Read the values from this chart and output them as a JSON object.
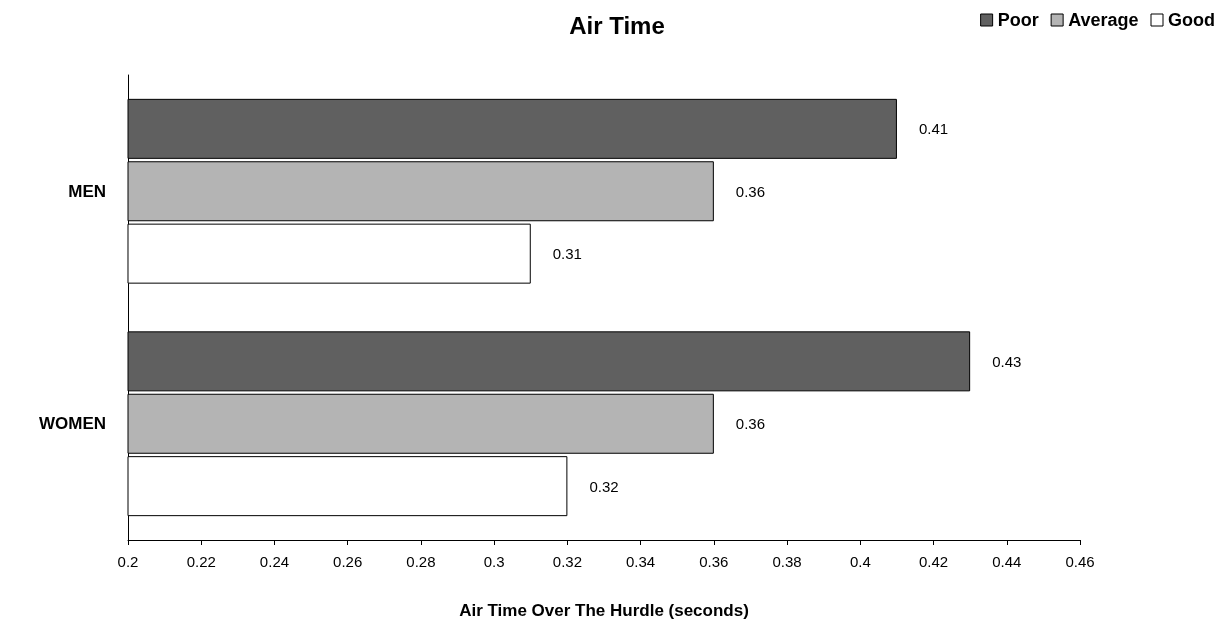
{
  "chart_data": {
    "type": "bar",
    "orientation": "horizontal",
    "title": "Air Time",
    "xlabel": "Air Time Over The Hurdle (seconds)",
    "categories": [
      "MEN",
      "WOMEN"
    ],
    "series": [
      {
        "name": "Poor",
        "color": "#606060",
        "values": [
          0.41,
          0.43
        ]
      },
      {
        "name": "Average",
        "color": "#b4b4b4",
        "values": [
          0.36,
          0.36
        ]
      },
      {
        "name": "Good",
        "color": "#ffffff",
        "values": [
          0.31,
          0.32
        ]
      }
    ],
    "xlim": [
      0.2,
      0.46
    ],
    "xticks": [
      0.2,
      0.22,
      0.24,
      0.26,
      0.28,
      0.3,
      0.32,
      0.34,
      0.36,
      0.38,
      0.4,
      0.42,
      0.44,
      0.46
    ],
    "data_labels": true,
    "grid": false,
    "legend": "top right"
  }
}
